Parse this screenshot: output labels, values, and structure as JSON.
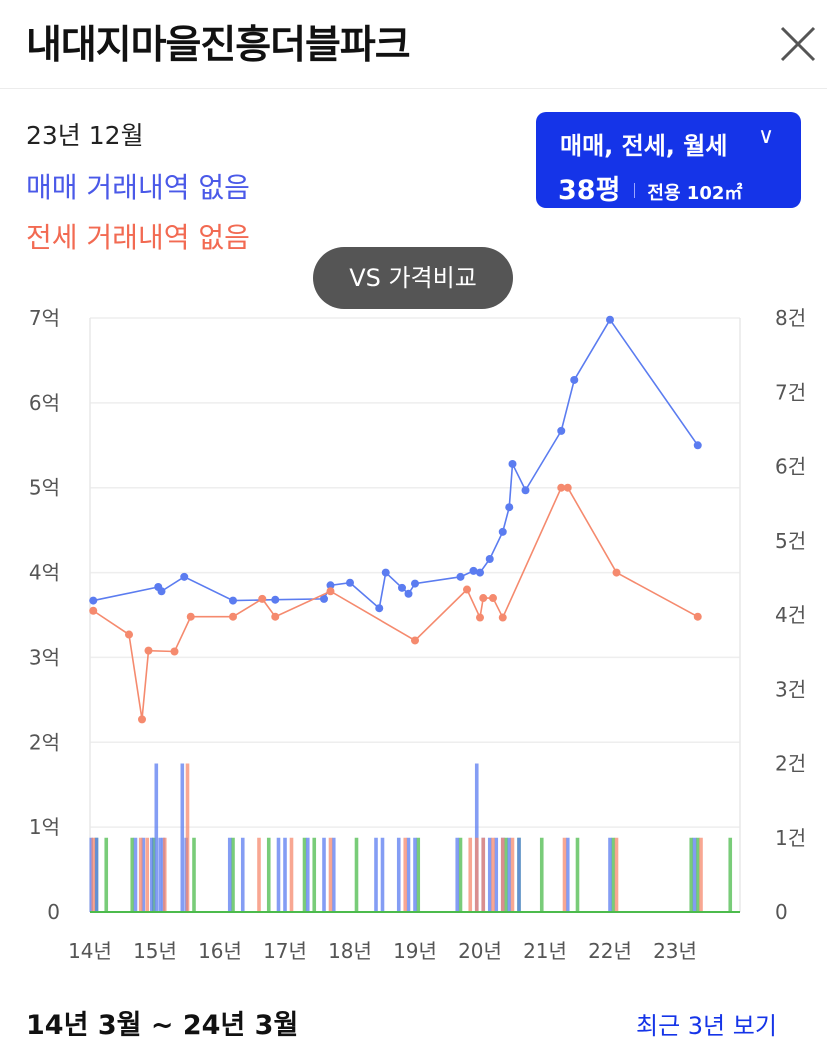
{
  "header": {
    "title": "내대지마을진흥더블파크"
  },
  "summary": {
    "date": "23년 12월",
    "sale_status": "매매 거래내역 없음",
    "jeonse_status": "전세 거래내역 없음"
  },
  "type_selector": {
    "label": "매매, 전세, 월세",
    "chevron": "∨",
    "pyeong": "38평",
    "area": "전용 102㎡"
  },
  "vs_button": {
    "label": "VS 가격비교"
  },
  "colors": {
    "sale": "#5b7cf0",
    "jeonse": "#f58a6e",
    "monthly": "#4cbb4c",
    "accent": "#1534e8"
  },
  "chart_data": {
    "type": "line",
    "x_ticks": [
      "14년",
      "15년",
      "16년",
      "17년",
      "18년",
      "19년",
      "20년",
      "21년",
      "22년",
      "23년"
    ],
    "y_left_ticks": [
      "0",
      "1억",
      "2억",
      "3억",
      "4억",
      "5억",
      "6억",
      "7억"
    ],
    "y_left_ylim": [
      0,
      7
    ],
    "y_right_ticks": [
      "0",
      "1건",
      "2건",
      "3건",
      "4건",
      "5건",
      "6건",
      "7건",
      "8건"
    ],
    "y_right_ylim": [
      0,
      8
    ],
    "xlim": [
      2014.0,
      2024.0
    ],
    "series": [
      {
        "points": [
          [
            2014.05,
            3.67
          ],
          [
            2015.05,
            3.83
          ],
          [
            2015.1,
            3.78
          ],
          [
            2015.45,
            3.95
          ],
          [
            2016.2,
            3.67
          ],
          [
            2016.85,
            3.68
          ],
          [
            2017.6,
            3.69
          ],
          [
            2017.7,
            3.85
          ],
          [
            2018.0,
            3.88
          ],
          [
            2018.45,
            3.58
          ],
          [
            2018.55,
            4.0
          ],
          [
            2018.8,
            3.82
          ],
          [
            2018.9,
            3.75
          ],
          [
            2019.0,
            3.87
          ],
          [
            2019.7,
            3.95
          ],
          [
            2019.9,
            4.02
          ],
          [
            2020.0,
            4.0
          ],
          [
            2020.15,
            4.16
          ],
          [
            2020.35,
            4.48
          ],
          [
            2020.45,
            4.77
          ],
          [
            2020.5,
            5.28
          ],
          [
            2020.7,
            4.97
          ],
          [
            2021.25,
            5.67
          ],
          [
            2021.45,
            6.27
          ],
          [
            2022.0,
            6.98
          ],
          [
            2023.35,
            5.5
          ]
        ]
      },
      {
        "points": [
          [
            2014.05,
            3.55
          ],
          [
            2014.6,
            3.27
          ],
          [
            2014.8,
            2.27
          ],
          [
            2014.9,
            3.08
          ],
          [
            2015.3,
            3.07
          ],
          [
            2015.55,
            3.48
          ],
          [
            2016.2,
            3.48
          ],
          [
            2016.65,
            3.69
          ],
          [
            2016.85,
            3.48
          ],
          [
            2017.7,
            3.78
          ],
          [
            2019.0,
            3.2
          ],
          [
            2019.8,
            3.8
          ],
          [
            2020.0,
            3.47
          ],
          [
            2020.05,
            3.7
          ],
          [
            2020.2,
            3.7
          ],
          [
            2020.35,
            3.47
          ],
          [
            2021.25,
            5.0
          ],
          [
            2021.35,
            5.0
          ],
          [
            2022.1,
            4.0
          ],
          [
            2023.35,
            3.48
          ]
        ]
      }
    ],
    "volume_bars": {
      "sale": [
        [
          2014.02,
          1
        ],
        [
          2014.1,
          1
        ],
        [
          2014.7,
          1
        ],
        [
          2014.82,
          1
        ],
        [
          2014.95,
          1
        ],
        [
          2015.02,
          2
        ],
        [
          2015.08,
          1
        ],
        [
          2015.13,
          1
        ],
        [
          2015.42,
          2
        ],
        [
          2015.48,
          1
        ],
        [
          2016.15,
          1
        ],
        [
          2016.35,
          1
        ],
        [
          2016.9,
          1
        ],
        [
          2017.0,
          1
        ],
        [
          2017.35,
          1
        ],
        [
          2017.6,
          1
        ],
        [
          2017.75,
          1
        ],
        [
          2018.4,
          1
        ],
        [
          2018.5,
          1
        ],
        [
          2018.75,
          1
        ],
        [
          2018.9,
          1
        ],
        [
          2019.0,
          1
        ],
        [
          2019.65,
          1
        ],
        [
          2019.95,
          2
        ],
        [
          2020.05,
          1
        ],
        [
          2020.15,
          1
        ],
        [
          2020.25,
          1
        ],
        [
          2020.35,
          1
        ],
        [
          2020.45,
          1
        ],
        [
          2020.6,
          1
        ],
        [
          2021.35,
          1
        ],
        [
          2022.0,
          1
        ],
        [
          2023.3,
          1
        ]
      ],
      "jeonse": [
        [
          2014.05,
          1
        ],
        [
          2014.78,
          1
        ],
        [
          2014.88,
          1
        ],
        [
          2015.15,
          1
        ],
        [
          2015.5,
          2
        ],
        [
          2016.6,
          1
        ],
        [
          2017.1,
          1
        ],
        [
          2017.7,
          1
        ],
        [
          2018.85,
          1
        ],
        [
          2019.85,
          1
        ],
        [
          2019.95,
          1
        ],
        [
          2020.05,
          1
        ],
        [
          2020.2,
          1
        ],
        [
          2020.35,
          1
        ],
        [
          2020.5,
          1
        ],
        [
          2021.3,
          1
        ],
        [
          2022.1,
          1
        ],
        [
          2023.4,
          1
        ]
      ],
      "monthly": [
        [
          2014.1,
          1
        ],
        [
          2014.25,
          1
        ],
        [
          2014.65,
          1
        ],
        [
          2014.98,
          1
        ],
        [
          2015.6,
          1
        ],
        [
          2016.2,
          1
        ],
        [
          2016.75,
          1
        ],
        [
          2017.3,
          1
        ],
        [
          2017.45,
          1
        ],
        [
          2018.1,
          1
        ],
        [
          2019.05,
          1
        ],
        [
          2019.7,
          1
        ],
        [
          2020.4,
          1
        ],
        [
          2020.6,
          1
        ],
        [
          2020.95,
          1
        ],
        [
          2021.5,
          1
        ],
        [
          2022.05,
          1
        ],
        [
          2023.25,
          1
        ],
        [
          2023.35,
          1
        ],
        [
          2023.85,
          1
        ]
      ]
    }
  },
  "footer": {
    "range": "14년 3월 ~ 24년 3월",
    "recent_link": "최근 3년 보기"
  }
}
